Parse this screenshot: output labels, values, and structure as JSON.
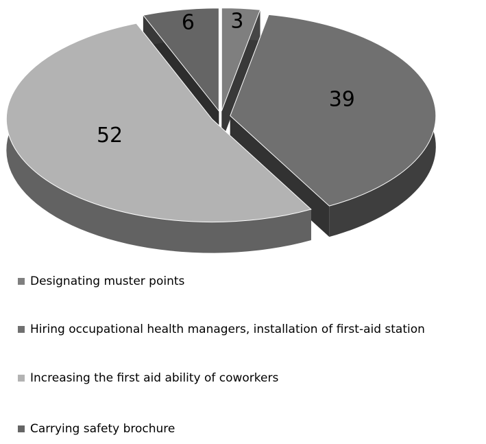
{
  "chart_data": {
    "type": "pie3d",
    "categories": [
      "Designating muster points",
      "Hiring occupational health managers, installation of first-aid station",
      "Increasing the first aid ability of coworkers",
      "Carrying safety brochure"
    ],
    "values": [
      3,
      39,
      52,
      6
    ],
    "colors": [
      "#7f7f7f",
      "#707070",
      "#b3b3b3",
      "#656565"
    ]
  }
}
